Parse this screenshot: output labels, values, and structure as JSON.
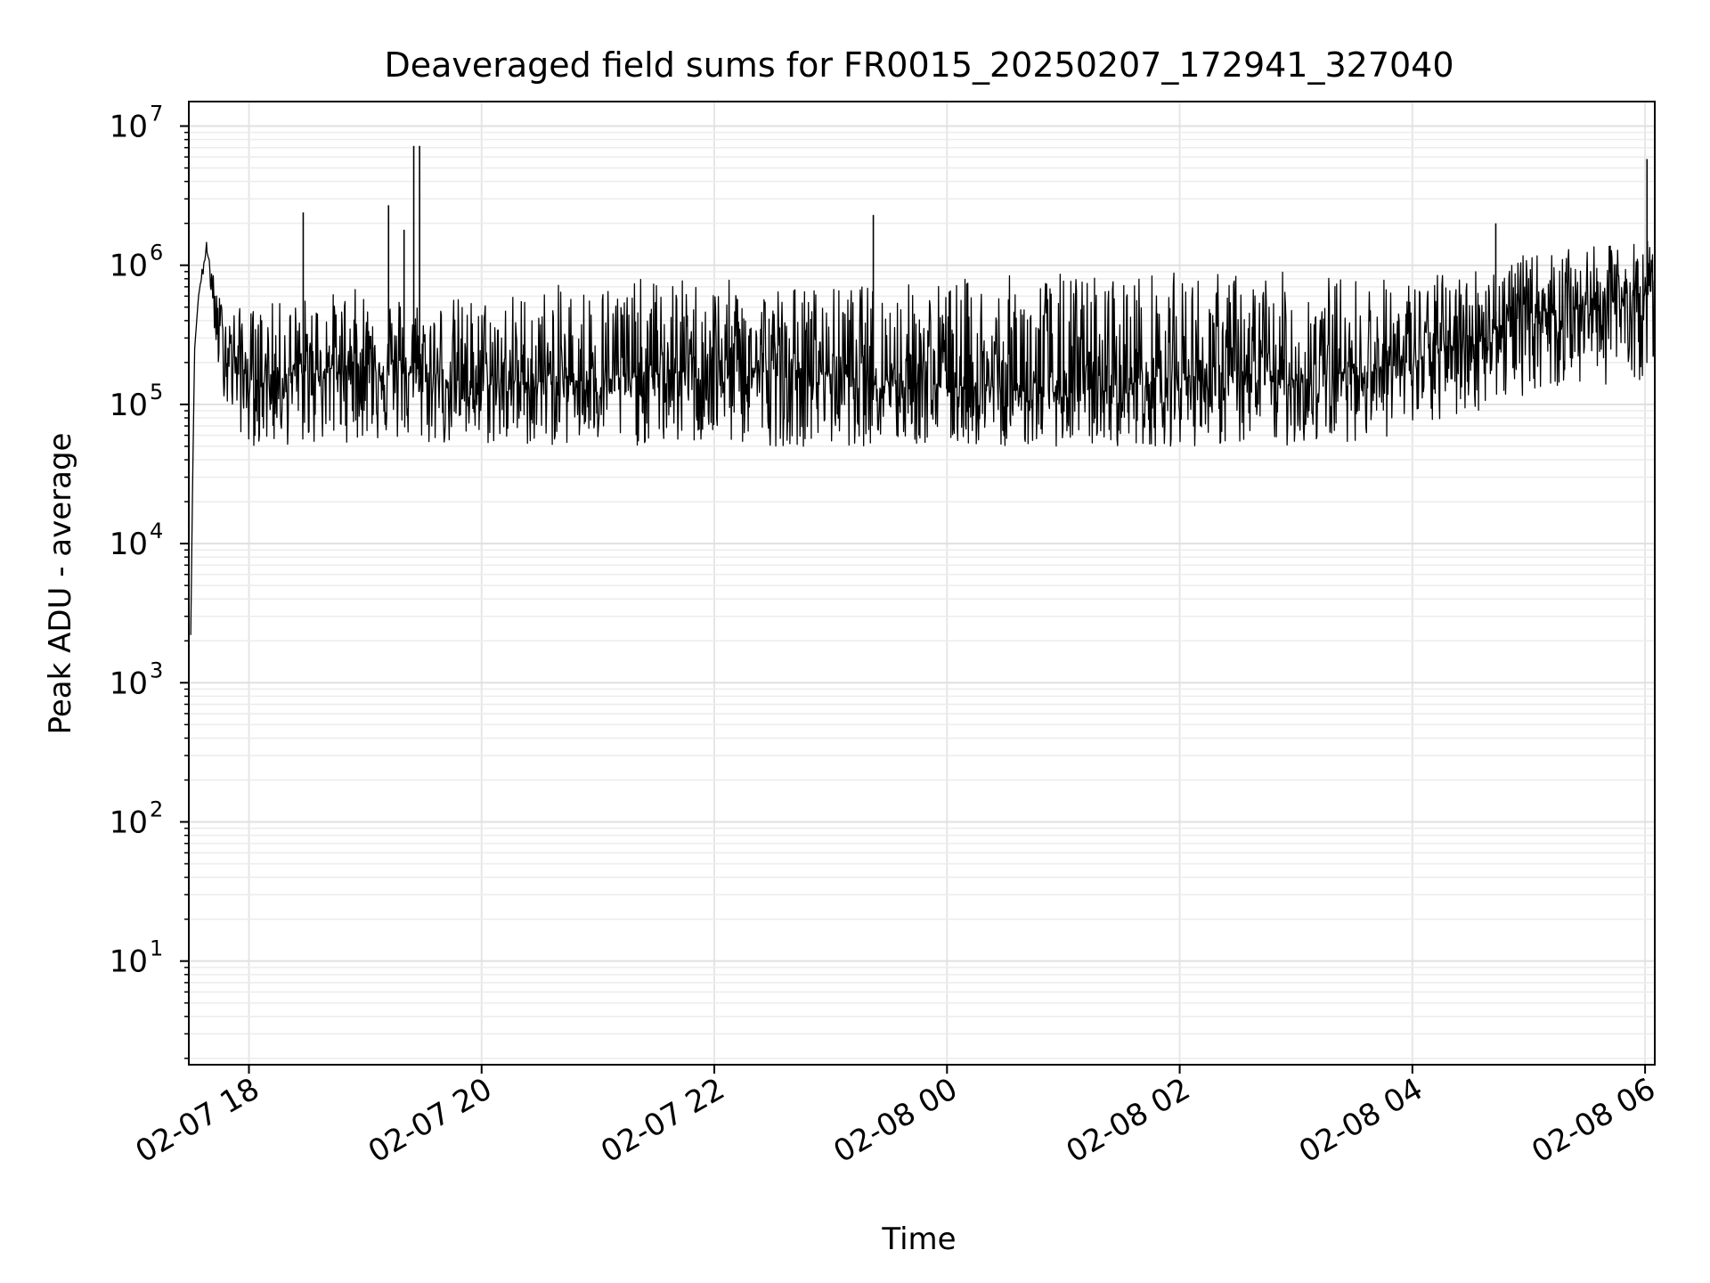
{
  "chart_data": {
    "type": "line",
    "title": "Deaveraged field sums for FR0015_20250207_172941_327040",
    "xlabel": "Time",
    "ylabel": "Peak ADU - average",
    "yscale": "log",
    "ylim": [
      1.8,
      15000000
    ],
    "xlim": [
      "2025-02-07 17:29",
      "2025-02-08 06:05"
    ],
    "grid": true,
    "x_ticks": [
      "02-07 18",
      "02-07 20",
      "02-07 22",
      "02-08 00",
      "02-08 02",
      "02-08 04",
      "02-08 06"
    ],
    "y_ticks": [
      {
        "base": "10",
        "exp": "1"
      },
      {
        "base": "10",
        "exp": "2"
      },
      {
        "base": "10",
        "exp": "3"
      },
      {
        "base": "10",
        "exp": "4"
      },
      {
        "base": "10",
        "exp": "5"
      },
      {
        "base": "10",
        "exp": "6"
      },
      {
        "base": "10",
        "exp": "7"
      }
    ],
    "series": [
      {
        "color": "#000000",
        "x": [
          "2025-02-07 17:30",
          "2025-02-07 17:31",
          "2025-02-07 17:32",
          "2025-02-07 17:34",
          "2025-02-07 17:36",
          "2025-02-07 17:38",
          "2025-02-07 17:40",
          "2025-02-07 17:42",
          "2025-02-07 17:45",
          "2025-02-07 17:50",
          "2025-02-07 18:00",
          "2025-02-07 18:30",
          "2025-02-07 19:00",
          "2025-02-07 19:30",
          "2025-02-07 20:00",
          "2025-02-07 21:00",
          "2025-02-07 22:00",
          "2025-02-07 23:00",
          "2025-02-08 00:00",
          "2025-02-08 01:00",
          "2025-02-08 02:00",
          "2025-02-08 03:00",
          "2025-02-08 04:00",
          "2025-02-08 05:00",
          "2025-02-08 06:00",
          "2025-02-08 06:05"
        ],
        "y": [
          2200,
          30000,
          250000,
          600000,
          900000,
          1300000,
          1000000,
          500000,
          350000,
          250000,
          150000,
          170000,
          200000,
          160000,
          140000,
          150000,
          180000,
          170000,
          140000,
          120000,
          160000,
          150000,
          200000,
          450000,
          600000,
          700000
        ],
        "band_low": [
          2200,
          30000,
          250000,
          600000,
          800000,
          1000000,
          700000,
          250000,
          150000,
          80000,
          50000,
          50000,
          55000,
          50000,
          50000,
          50000,
          50000,
          50000,
          50000,
          50000,
          50000,
          50000,
          60000,
          120000,
          150000,
          200000
        ],
        "band_high": [
          2200,
          30000,
          250000,
          600000,
          1000000,
          1500000,
          1200000,
          800000,
          600000,
          500000,
          500000,
          600000,
          700000,
          600000,
          600000,
          800000,
          800000,
          700000,
          800000,
          900000,
          900000,
          900000,
          800000,
          1200000,
          1500000,
          2000000
        ],
        "spikes": [
          {
            "x": "2025-02-07 18:28",
            "y": 2400000
          },
          {
            "x": "2025-02-07 19:12",
            "y": 2700000
          },
          {
            "x": "2025-02-07 19:20",
            "y": 1800000
          },
          {
            "x": "2025-02-07 19:25",
            "y": 7200000
          },
          {
            "x": "2025-02-07 19:28",
            "y": 7200000
          },
          {
            "x": "2025-02-07 23:22",
            "y": 2300000
          },
          {
            "x": "2025-02-08 04:43",
            "y": 2000000
          },
          {
            "x": "2025-02-08 06:01",
            "y": 5800000
          }
        ]
      }
    ]
  }
}
